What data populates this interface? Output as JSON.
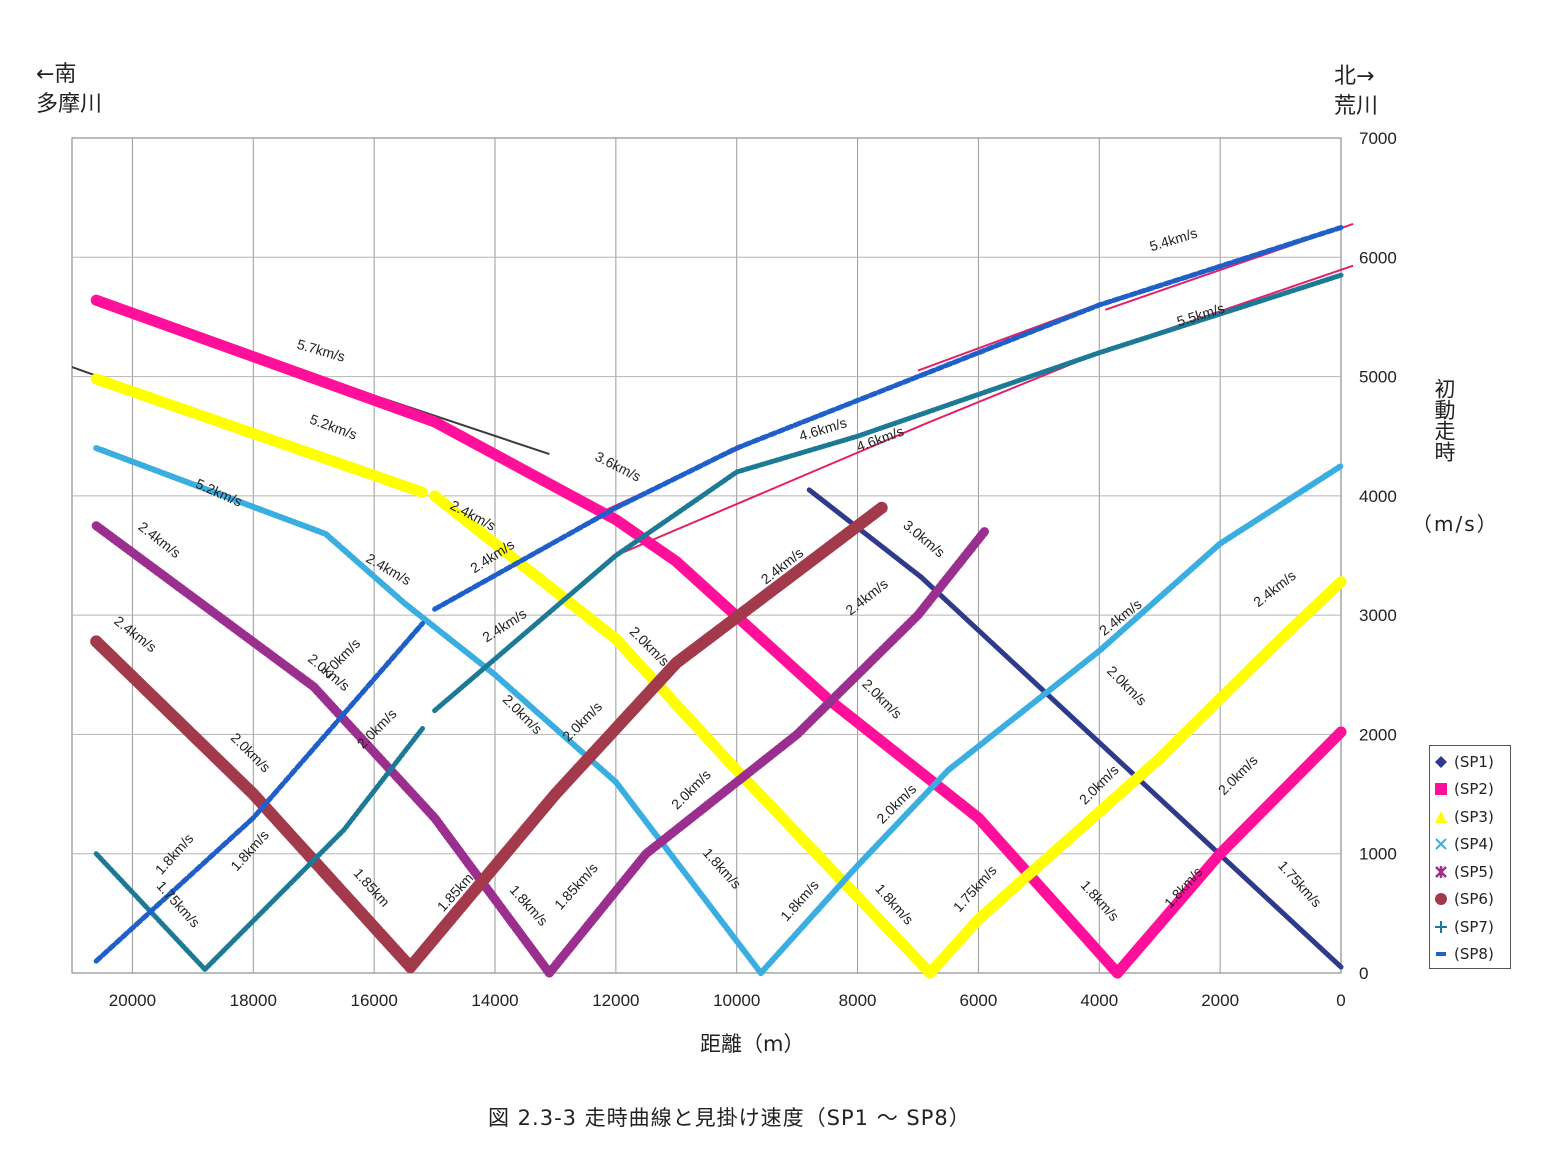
{
  "corner_left": {
    "line1": "←南",
    "line2": "多摩川"
  },
  "corner_right": {
    "line1": "北→",
    "line2": "荒川"
  },
  "ylabel": "初動走時",
  "yunit": "（m/s）",
  "xlabel": "距離（m）",
  "caption": "図 2.3-3  走時曲線と見掛け速度（SP1 ～ SP8）",
  "legend": [
    {
      "label": "(SP1)",
      "marker": "diamond",
      "color": "#2e3a8c"
    },
    {
      "label": "(SP2)",
      "marker": "square",
      "color": "#ff0f9a"
    },
    {
      "label": "(SP3)",
      "marker": "triangle",
      "color": "#ffff00"
    },
    {
      "label": "(SP4)",
      "marker": "x",
      "color": "#3aaee0"
    },
    {
      "label": "(SP5)",
      "marker": "star",
      "color": "#9b2f8f"
    },
    {
      "label": "(SP6)",
      "marker": "circle",
      "color": "#a33a4b"
    },
    {
      "label": "(SP7)",
      "marker": "plus",
      "color": "#1c7a96"
    },
    {
      "label": "(SP8)",
      "marker": "dash",
      "color": "#1f5fc8"
    }
  ],
  "chart_data": {
    "type": "scatter",
    "x_axis": {
      "ticks": [
        20000,
        18000,
        16000,
        14000,
        12000,
        10000,
        8000,
        6000,
        4000,
        2000,
        0
      ],
      "range": [
        21000,
        0
      ],
      "reversed": true
    },
    "y_axis": {
      "ticks": [
        0,
        1000,
        2000,
        3000,
        4000,
        5000,
        6000,
        7000
      ],
      "range": [
        0,
        7000
      ],
      "position": "right"
    },
    "grid": true,
    "series": [
      {
        "name": "(SP1)",
        "color": "#2e3a8c",
        "marker": "diamond",
        "segments": [
          [
            [
              8800,
              4050
            ],
            [
              6950,
              3320
            ]
          ],
          [
            [
              6950,
              3320
            ],
            [
              0,
              50
            ]
          ]
        ]
      },
      {
        "name": "(SP2)",
        "color": "#ff0f9a",
        "marker": "square",
        "segments": [
          [
            [
              20600,
              5640
            ],
            [
              15000,
              4620
            ],
            [
              12000,
              3800
            ],
            [
              11000,
              3450
            ],
            [
              8500,
              2300
            ],
            [
              6000,
              1300
            ],
            [
              3700,
              0
            ]
          ],
          [
            [
              3700,
              0
            ],
            [
              2000,
              1000
            ],
            [
              0,
              2020
            ]
          ]
        ]
      },
      {
        "name": "(SP3)",
        "color": "#ffff00",
        "marker": "triangle",
        "segments": [
          [
            [
              20600,
              4980
            ],
            [
              15200,
              4030
            ]
          ],
          [
            [
              15000,
              4000
            ],
            [
              13500,
              3400
            ],
            [
              12000,
              2800
            ],
            [
              10000,
              1700
            ],
            [
              6800,
              0
            ]
          ],
          [
            [
              6800,
              0
            ],
            [
              6000,
              450
            ],
            [
              3000,
              1800
            ],
            [
              1000,
              2800
            ],
            [
              0,
              3280
            ]
          ]
        ]
      },
      {
        "name": "(SP4)",
        "color": "#3aaee0",
        "marker": "x",
        "segments": [
          [
            [
              20600,
              4400
            ],
            [
              16800,
              3680
            ],
            [
              15500,
              3100
            ],
            [
              14000,
              2500
            ],
            [
              12000,
              1600
            ],
            [
              9600,
              0
            ]
          ],
          [
            [
              9600,
              0
            ],
            [
              8000,
              900
            ],
            [
              6500,
              1700
            ],
            [
              4000,
              2700
            ],
            [
              2000,
              3600
            ],
            [
              0,
              4250
            ]
          ]
        ]
      },
      {
        "name": "(SP5)",
        "color": "#9b2f8f",
        "marker": "star",
        "segments": [
          [
            [
              20600,
              3750
            ],
            [
              17000,
              2400
            ],
            [
              15000,
              1300
            ],
            [
              13100,
              0
            ]
          ],
          [
            [
              13100,
              0
            ],
            [
              11500,
              1000
            ],
            [
              9000,
              2000
            ],
            [
              7000,
              3000
            ],
            [
              5900,
              3700
            ]
          ]
        ]
      },
      {
        "name": "(SP6)",
        "color": "#a33a4b",
        "marker": "circle",
        "segments": [
          [
            [
              20600,
              2780
            ],
            [
              18000,
              1500
            ],
            [
              15400,
              50
            ]
          ],
          [
            [
              15400,
              50
            ],
            [
              13000,
              1500
            ],
            [
              11000,
              2600
            ],
            [
              7600,
              3900
            ]
          ]
        ]
      },
      {
        "name": "(SP7)",
        "color": "#1c7a96",
        "marker": "plus",
        "segments": [
          [
            [
              20600,
              1000
            ],
            [
              18800,
              30
            ]
          ],
          [
            [
              18800,
              30
            ],
            [
              16500,
              1200
            ],
            [
              15200,
              2050
            ]
          ],
          [
            [
              15000,
              2200
            ],
            [
              12000,
              3500
            ],
            [
              10000,
              4200
            ],
            [
              8000,
              4500
            ],
            [
              4000,
              5200
            ],
            [
              0,
              5850
            ]
          ]
        ]
      },
      {
        "name": "(SP8)",
        "color": "#1f5fc8",
        "marker": "dash",
        "segments": [
          [
            [
              20600,
              100
            ],
            [
              18000,
              1300
            ],
            [
              15200,
              2930
            ]
          ],
          [
            [
              15000,
              3050
            ],
            [
              12000,
              3900
            ],
            [
              10000,
              4400
            ],
            [
              7000,
              5000
            ],
            [
              4000,
              5600
            ],
            [
              0,
              6250
            ]
          ]
        ]
      }
    ],
    "fit_lines": [
      {
        "color": "#3b3b3b",
        "from": [
          20600,
          5620
        ],
        "to": [
          13100,
          4350
        ]
      },
      {
        "color": "#3b3b3b",
        "from": [
          21000,
          5080
        ],
        "to": [
          15300,
          4050
        ]
      },
      {
        "color": "#3b3b3b",
        "from": [
          20500,
          4400
        ],
        "to": [
          16800,
          3680
        ]
      },
      {
        "color": "#e0226a",
        "from": [
          12300,
          3850
        ],
        "to": [
          9500,
          4500
        ]
      },
      {
        "color": "#e0226a",
        "from": [
          7000,
          5050
        ],
        "to": [
          3950,
          5620
        ]
      },
      {
        "color": "#e0226a",
        "from": [
          3900,
          5560
        ],
        "to": [
          -200,
          6280
        ]
      },
      {
        "color": "#e0226a",
        "from": [
          12000,
          3500
        ],
        "to": [
          6900,
          4600
        ]
      },
      {
        "color": "#e0226a",
        "from": [
          6900,
          4600
        ],
        "to": [
          4000,
          5200
        ]
      },
      {
        "color": "#e0226a",
        "from": [
          4000,
          5200
        ],
        "to": [
          -200,
          5930
        ]
      }
    ],
    "annotations": [
      {
        "text": "5.7km/s",
        "x": 16900,
        "y": 5180,
        "angle": 16
      },
      {
        "text": "5.2km/s",
        "x": 16700,
        "y": 4540,
        "angle": 20
      },
      {
        "text": "5.2km/s",
        "x": 18600,
        "y": 3990,
        "angle": 24
      },
      {
        "text": "3.6km/s",
        "x": 12000,
        "y": 4210,
        "angle": 27
      },
      {
        "text": "4.6km/s",
        "x": 8550,
        "y": 4520,
        "angle": -17
      },
      {
        "text": "4.6km/s",
        "x": 7600,
        "y": 4440,
        "angle": -20
      },
      {
        "text": "5.4km/s",
        "x": 2750,
        "y": 6110,
        "angle": -17
      },
      {
        "text": "5.5km/s",
        "x": 2300,
        "y": 5480,
        "angle": -17
      },
      {
        "text": "2.4km/s",
        "x": 14400,
        "y": 3800,
        "angle": 28
      },
      {
        "text": "2.4km/s",
        "x": 14000,
        "y": 3460,
        "angle": -33
      },
      {
        "text": "2.4km/s",
        "x": 15800,
        "y": 3350,
        "angle": 30
      },
      {
        "text": "2.4km/s",
        "x": 13800,
        "y": 2880,
        "angle": -33
      },
      {
        "text": "2.4km/s",
        "x": 19600,
        "y": 3600,
        "angle": 38
      },
      {
        "text": "2.4km/s",
        "x": 20000,
        "y": 2810,
        "angle": 38
      },
      {
        "text": "2.4km/s",
        "x": 9200,
        "y": 3380,
        "angle": -38
      },
      {
        "text": "2.4km/s",
        "x": 7800,
        "y": 3120,
        "angle": -38
      },
      {
        "text": "2.4km/s",
        "x": 3600,
        "y": 2950,
        "angle": -38
      },
      {
        "text": "2.4km/s",
        "x": 1050,
        "y": 3190,
        "angle": -38
      },
      {
        "text": "3.0km/s",
        "x": 6950,
        "y": 3610,
        "angle": 40
      },
      {
        "text": "2.0km/s",
        "x": 16800,
        "y": 2490,
        "angle": 40
      },
      {
        "text": "2.0km/s",
        "x": 16500,
        "y": 2610,
        "angle": -45
      },
      {
        "text": "2.0km/s",
        "x": 15900,
        "y": 2020,
        "angle": -45
      },
      {
        "text": "2.0km/s",
        "x": 18100,
        "y": 1820,
        "angle": 45
      },
      {
        "text": "2.0km/s",
        "x": 13600,
        "y": 2140,
        "angle": 45
      },
      {
        "text": "2.0km/s",
        "x": 12500,
        "y": 2080,
        "angle": -45
      },
      {
        "text": "2.0km/s",
        "x": 11500,
        "y": 2710,
        "angle": 45
      },
      {
        "text": "2.0km/s",
        "x": 10700,
        "y": 1510,
        "angle": -45
      },
      {
        "text": "2.0km/s",
        "x": 7650,
        "y": 2270,
        "angle": 45
      },
      {
        "text": "2.0km/s",
        "x": 7300,
        "y": 1390,
        "angle": -45
      },
      {
        "text": "2.0km/s",
        "x": 3600,
        "y": 2380,
        "angle": 45
      },
      {
        "text": "2.0km/s",
        "x": 3950,
        "y": 1550,
        "angle": -45
      },
      {
        "text": "2.0km/s",
        "x": 1650,
        "y": 1630,
        "angle": -45
      },
      {
        "text": "1.8km/s",
        "x": 19250,
        "y": 970,
        "angle": -48
      },
      {
        "text": "1.75km/s",
        "x": 19300,
        "y": 550,
        "angle": 48
      },
      {
        "text": "1.8km/s",
        "x": 18000,
        "y": 1000,
        "angle": -48
      },
      {
        "text": "1.85km",
        "x": 16100,
        "y": 690,
        "angle": 48
      },
      {
        "text": "1.85km",
        "x": 14600,
        "y": 650,
        "angle": -48
      },
      {
        "text": "1.8km/s",
        "x": 13500,
        "y": 540,
        "angle": 48
      },
      {
        "text": "1.85km/s",
        "x": 12600,
        "y": 700,
        "angle": -48
      },
      {
        "text": "1.8km/s",
        "x": 10300,
        "y": 850,
        "angle": 48
      },
      {
        "text": "1.8km/s",
        "x": 8900,
        "y": 580,
        "angle": -48
      },
      {
        "text": "1.8km/s",
        "x": 7450,
        "y": 550,
        "angle": 48
      },
      {
        "text": "1.75km/s",
        "x": 6000,
        "y": 680,
        "angle": -48
      },
      {
        "text": "1.8km/s",
        "x": 4050,
        "y": 580,
        "angle": 48
      },
      {
        "text": "1.8km/s",
        "x": 2550,
        "y": 690,
        "angle": -48
      },
      {
        "text": "1.75km/s",
        "x": 740,
        "y": 720,
        "angle": 48
      }
    ]
  }
}
